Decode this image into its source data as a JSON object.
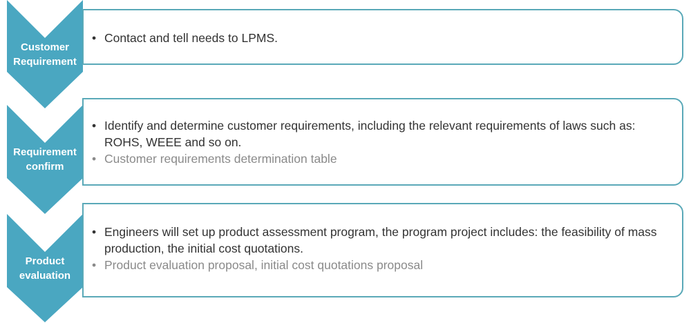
{
  "accent": "#4aa7c1",
  "steps": [
    {
      "label_line1": "Customer",
      "label_line2": "Requirement",
      "bullets": [
        "Contact and tell needs to LPMS."
      ],
      "outputs": []
    },
    {
      "label_line1": "Requirement",
      "label_line2": "confirm",
      "bullets": [
        "Identify and determine customer requirements, including the relevant requirements of laws such as: ROHS, WEEE and so on."
      ],
      "outputs": [
        "Customer requirements determination table"
      ]
    },
    {
      "label_line1": "Product",
      "label_line2": "evaluation",
      "bullets": [
        "Engineers will set up product assessment program, the program project includes: the feasibility of mass production, the initial cost quotations."
      ],
      "outputs": [
        "Product evaluation proposal, initial cost quotations proposal"
      ]
    }
  ]
}
